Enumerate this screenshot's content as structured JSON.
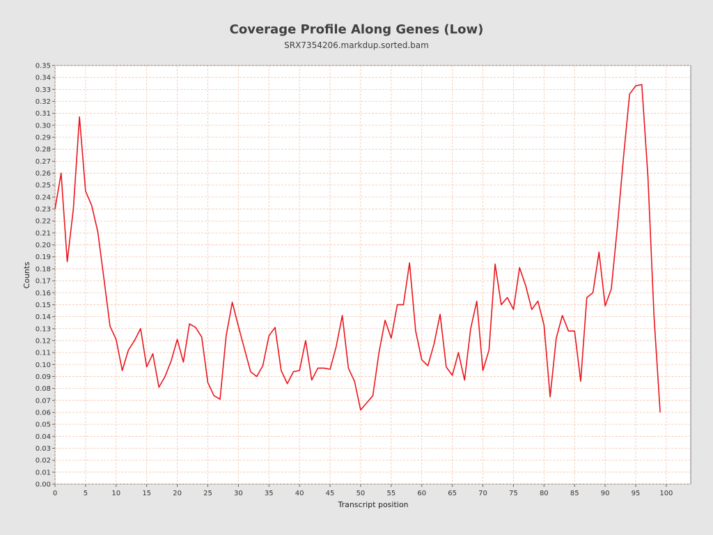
{
  "chart_data": {
    "type": "line",
    "title": "Coverage Profile Along Genes (Low)",
    "subtitle": "SRX7354206.markdup.sorted.bam",
    "xlabel": "Transcript position",
    "ylabel": "Counts",
    "xlim": [
      0,
      104
    ],
    "ylim": [
      0,
      0.35
    ],
    "x_ticks": [
      0,
      5,
      10,
      15,
      20,
      25,
      30,
      35,
      40,
      45,
      50,
      55,
      60,
      65,
      70,
      75,
      80,
      85,
      90,
      95,
      100
    ],
    "y_ticks": [
      "0.00",
      "0.01",
      "0.02",
      "0.03",
      "0.04",
      "0.05",
      "0.06",
      "0.07",
      "0.08",
      "0.09",
      "0.10",
      "0.11",
      "0.12",
      "0.13",
      "0.14",
      "0.15",
      "0.16",
      "0.17",
      "0.18",
      "0.19",
      "0.20",
      "0.21",
      "0.22",
      "0.23",
      "0.24",
      "0.25",
      "0.26",
      "0.27",
      "0.28",
      "0.29",
      "0.30",
      "0.31",
      "0.32",
      "0.33",
      "0.34",
      "0.35"
    ],
    "grid": true,
    "series": [
      {
        "color": "#e8141c",
        "x": [
          0,
          1,
          2,
          3,
          4,
          5,
          6,
          7,
          8,
          9,
          10,
          11,
          12,
          13,
          14,
          15,
          16,
          17,
          18,
          19,
          20,
          21,
          22,
          23,
          24,
          25,
          26,
          27,
          28,
          29,
          30,
          31,
          32,
          33,
          34,
          35,
          36,
          37,
          38,
          39,
          40,
          41,
          42,
          43,
          44,
          45,
          46,
          47,
          48,
          49,
          50,
          51,
          52,
          53,
          54,
          55,
          56,
          57,
          58,
          59,
          60,
          61,
          62,
          63,
          64,
          65,
          66,
          67,
          68,
          69,
          70,
          71,
          72,
          73,
          74,
          75,
          76,
          77,
          78,
          79,
          80,
          81,
          82,
          83,
          84,
          85,
          86,
          87,
          88,
          89,
          90,
          91,
          92,
          93,
          94,
          95,
          96,
          97,
          98,
          99
        ],
        "values": [
          0.23,
          0.26,
          0.186,
          0.23,
          0.307,
          0.245,
          0.233,
          0.211,
          0.172,
          0.132,
          0.121,
          0.095,
          0.112,
          0.12,
          0.13,
          0.098,
          0.109,
          0.081,
          0.09,
          0.103,
          0.121,
          0.102,
          0.134,
          0.131,
          0.123,
          0.085,
          0.074,
          0.071,
          0.124,
          0.152,
          0.132,
          0.113,
          0.094,
          0.09,
          0.099,
          0.124,
          0.131,
          0.095,
          0.084,
          0.094,
          0.095,
          0.12,
          0.087,
          0.097,
          0.097,
          0.096,
          0.115,
          0.141,
          0.097,
          0.086,
          0.062,
          0.068,
          0.074,
          0.11,
          0.137,
          0.122,
          0.15,
          0.15,
          0.185,
          0.128,
          0.104,
          0.099,
          0.117,
          0.142,
          0.098,
          0.091,
          0.11,
          0.087,
          0.13,
          0.153,
          0.095,
          0.112,
          0.184,
          0.15,
          0.156,
          0.146,
          0.181,
          0.166,
          0.146,
          0.153,
          0.133,
          0.073,
          0.122,
          0.141,
          0.128,
          0.128,
          0.086,
          0.156,
          0.16,
          0.194,
          0.149,
          0.163,
          0.215,
          0.273,
          0.326,
          0.333,
          0.334,
          0.257,
          0.14,
          0.06
        ]
      }
    ]
  }
}
